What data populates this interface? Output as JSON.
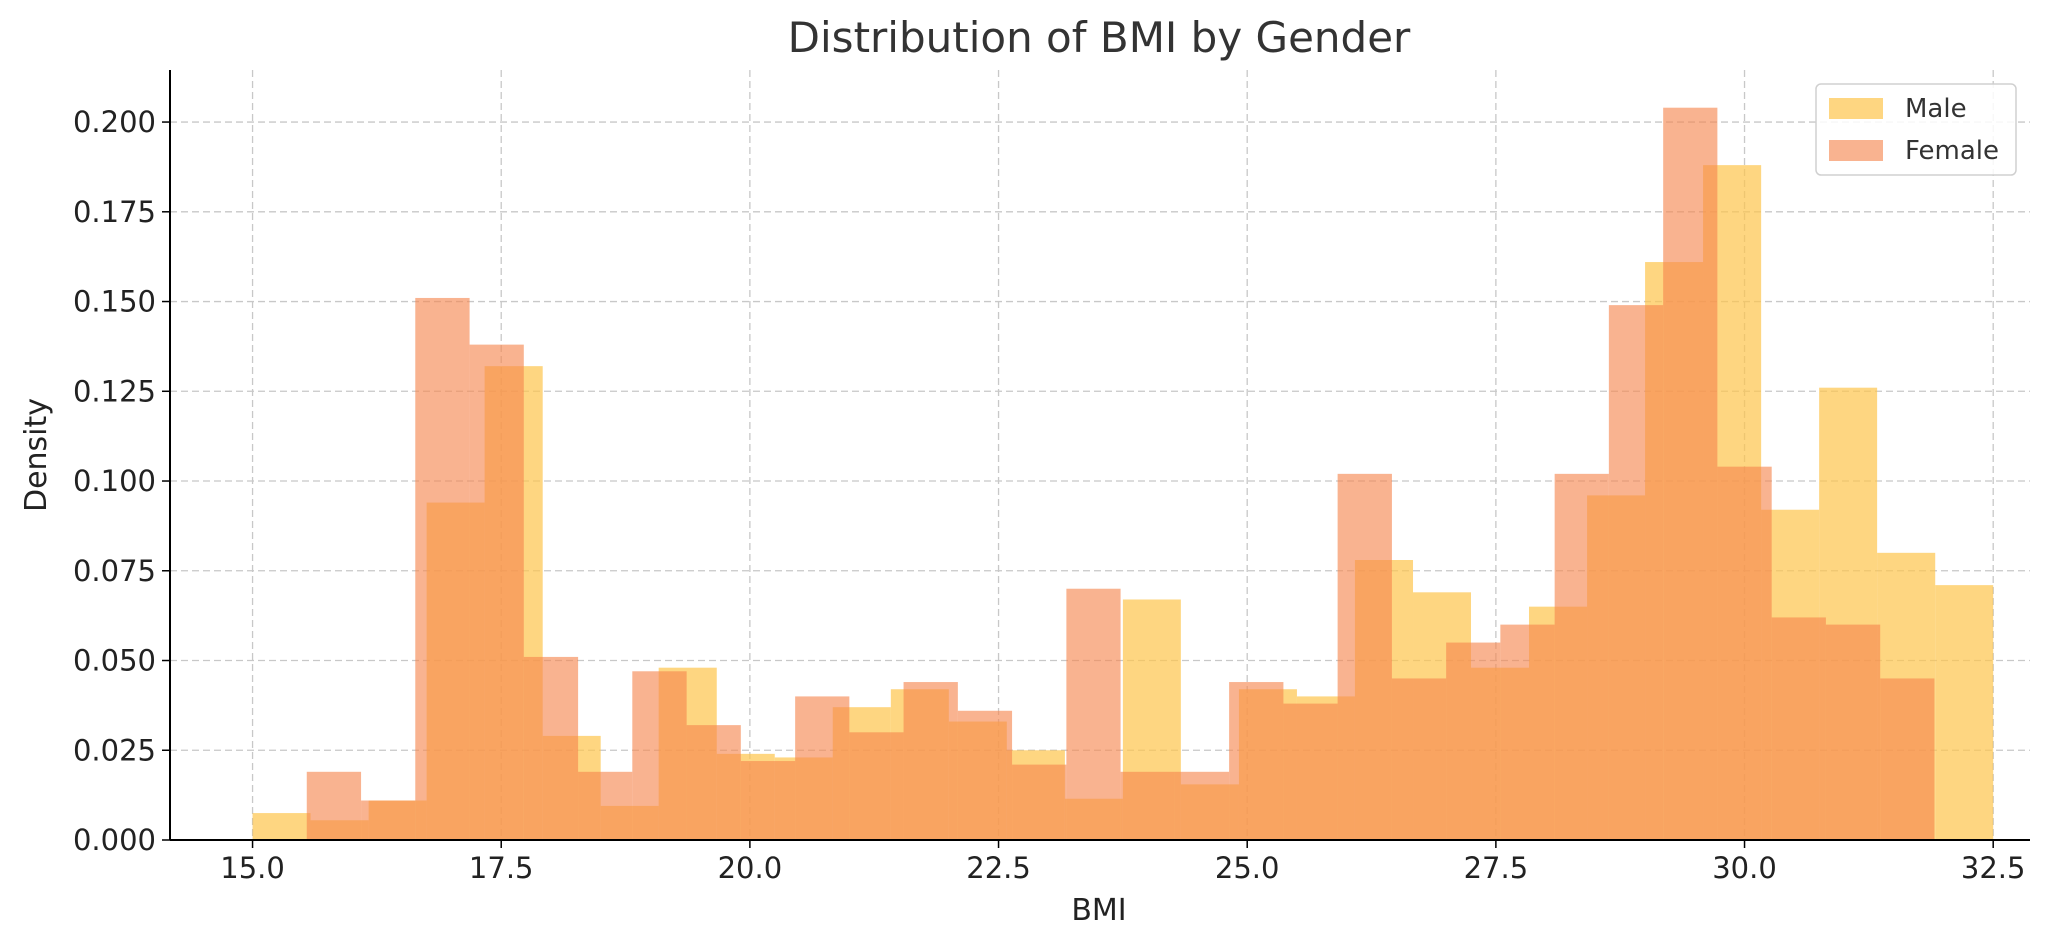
{
  "chart_data": {
    "type": "bar",
    "title": "Distribution of BMI by Gender",
    "xlabel": "BMI",
    "ylabel": "Density",
    "xlim": [
      14.17,
      32.87
    ],
    "ylim": [
      0,
      0.2145
    ],
    "x_ticks": [
      15.0,
      17.5,
      20.0,
      22.5,
      25.0,
      27.5,
      30.0,
      32.5
    ],
    "x_tick_labels": [
      "15.0",
      "17.5",
      "20.0",
      "22.5",
      "25.0",
      "27.5",
      "30.0",
      "32.5"
    ],
    "y_ticks": [
      0.0,
      0.025,
      0.05,
      0.075,
      0.1,
      0.125,
      0.15,
      0.175,
      0.2
    ],
    "y_tick_labels": [
      "0.000",
      "0.025",
      "0.050",
      "0.075",
      "0.100",
      "0.125",
      "0.150",
      "0.175",
      "0.200"
    ],
    "grid": true,
    "legend_position": "top-right",
    "series": [
      {
        "name": "Male",
        "color": "#fdc54c",
        "opacity": 0.7,
        "bins": [
          [
            15.0,
            15.583,
            0.0075
          ],
          [
            15.583,
            16.167,
            0.0055
          ],
          [
            16.167,
            16.75,
            0.011
          ],
          [
            16.75,
            17.333,
            0.094
          ],
          [
            17.333,
            17.917,
            0.132
          ],
          [
            17.917,
            18.5,
            0.029
          ],
          [
            18.5,
            19.083,
            0.0095
          ],
          [
            19.083,
            19.667,
            0.048
          ],
          [
            19.667,
            20.25,
            0.024
          ],
          [
            20.25,
            20.833,
            0.023
          ],
          [
            20.833,
            21.417,
            0.037
          ],
          [
            21.417,
            22.0,
            0.042
          ],
          [
            22.0,
            22.583,
            0.033
          ],
          [
            22.583,
            23.167,
            0.025
          ],
          [
            23.167,
            23.75,
            0.0115
          ],
          [
            23.75,
            24.333,
            0.067
          ],
          [
            24.333,
            24.917,
            0.0155
          ],
          [
            24.917,
            25.5,
            0.042
          ],
          [
            25.5,
            26.083,
            0.04
          ],
          [
            26.083,
            26.667,
            0.078
          ],
          [
            26.667,
            27.25,
            0.069
          ],
          [
            27.25,
            27.833,
            0.048
          ],
          [
            27.833,
            28.417,
            0.065
          ],
          [
            28.417,
            29.0,
            0.096
          ],
          [
            29.0,
            29.583,
            0.161
          ],
          [
            29.583,
            30.167,
            0.188
          ],
          [
            30.167,
            30.75,
            0.092
          ],
          [
            30.75,
            31.333,
            0.126
          ],
          [
            31.333,
            31.917,
            0.08
          ],
          [
            31.917,
            32.5,
            0.071
          ]
        ]
      },
      {
        "name": "Female",
        "color": "#f6874f",
        "opacity": 0.63,
        "bins": [
          [
            15.0,
            15.545,
            0.0
          ],
          [
            15.545,
            16.091,
            0.019
          ],
          [
            16.091,
            16.636,
            0.011
          ],
          [
            16.636,
            17.182,
            0.151
          ],
          [
            17.182,
            17.727,
            0.138
          ],
          [
            17.727,
            18.273,
            0.051
          ],
          [
            18.273,
            18.818,
            0.019
          ],
          [
            18.818,
            19.364,
            0.047
          ],
          [
            19.364,
            19.909,
            0.032
          ],
          [
            19.909,
            20.455,
            0.022
          ],
          [
            20.455,
            21.0,
            0.04
          ],
          [
            21.0,
            21.545,
            0.03
          ],
          [
            21.545,
            22.091,
            0.044
          ],
          [
            22.091,
            22.636,
            0.036
          ],
          [
            22.636,
            23.182,
            0.021
          ],
          [
            23.182,
            23.727,
            0.07
          ],
          [
            23.727,
            24.273,
            0.019
          ],
          [
            24.273,
            24.818,
            0.019
          ],
          [
            24.818,
            25.364,
            0.044
          ],
          [
            25.364,
            25.909,
            0.038
          ],
          [
            25.909,
            26.455,
            0.102
          ],
          [
            26.455,
            27.0,
            0.045
          ],
          [
            27.0,
            27.545,
            0.055
          ],
          [
            27.545,
            28.091,
            0.06
          ],
          [
            28.091,
            28.636,
            0.102
          ],
          [
            28.636,
            29.182,
            0.149
          ],
          [
            29.182,
            29.727,
            0.204
          ],
          [
            29.727,
            30.273,
            0.104
          ],
          [
            30.273,
            30.818,
            0.062
          ],
          [
            30.818,
            31.364,
            0.06
          ],
          [
            31.364,
            31.909,
            0.045
          ]
        ]
      }
    ]
  }
}
